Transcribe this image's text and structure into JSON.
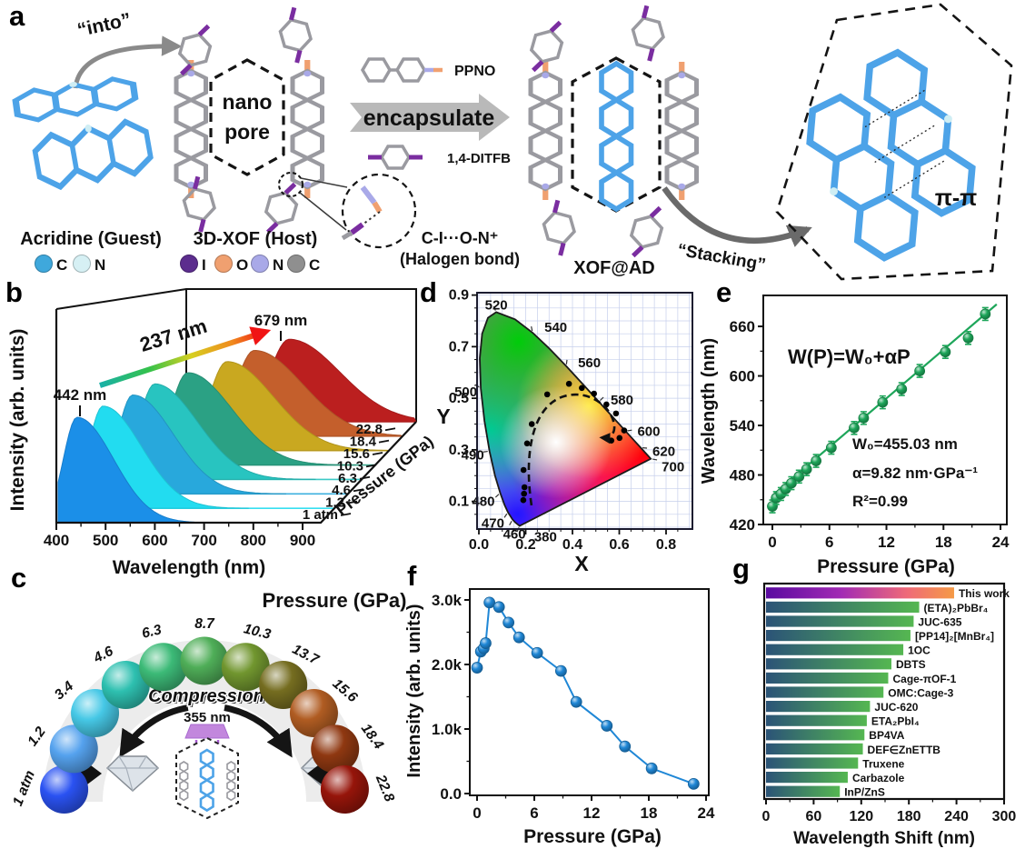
{
  "panel_letters": {
    "a": "a",
    "b": "b",
    "c": "c",
    "d": "d",
    "e": "e",
    "f": "f",
    "g": "g"
  },
  "panel_a": {
    "into": "“into”",
    "nano1": "nano",
    "nano2": "pore",
    "guest_title": "Acridine  (Guest)",
    "guest_atoms": [
      {
        "s": "C",
        "c": "#3fa8dc"
      },
      {
        "s": "N",
        "c": "#d6f0f4"
      }
    ],
    "host_title": "3D-XOF  (Host)",
    "host_atoms": [
      {
        "s": "I",
        "c": "#5c2d8e"
      },
      {
        "s": "O",
        "c": "#f0a070"
      },
      {
        "s": "N",
        "c": "#a9a9e8"
      },
      {
        "s": "C",
        "c": "#8f8f8f"
      }
    ],
    "ppno": "PPNO",
    "encapsulate": "encapsulate",
    "ditfb": "1,4-DITFB",
    "halogen1": "C-I···O-N⁺",
    "halogen2": "(Halogen bond)",
    "xofad": "XOF@AD",
    "stacking": "“Stacking”",
    "pipi": "π-π"
  },
  "panel_c": {
    "title": "Pressure (GPa)",
    "compression": "Compression",
    "laser": "355 nm",
    "spheres": [
      {
        "label": "1 atm",
        "color": "#2a52f2"
      },
      {
        "label": "1.2",
        "color": "#55a2ee"
      },
      {
        "label": "3.4",
        "color": "#46c8e6"
      },
      {
        "label": "4.6",
        "color": "#2ec0b0"
      },
      {
        "label": "6.3",
        "color": "#3cba77"
      },
      {
        "label": "8.7",
        "color": "#4fae58"
      },
      {
        "label": "10.3",
        "color": "#71962f"
      },
      {
        "label": "13.7",
        "color": "#756d20"
      },
      {
        "label": "15.6",
        "color": "#b05c22"
      },
      {
        "label": "18.4",
        "color": "#8f3811"
      },
      {
        "label": "22.8",
        "color": "#96150a"
      }
    ]
  },
  "colors": {
    "guest_blue": "#4da3e8",
    "host_gray": "#9a9aa0",
    "iodine_purple": "#7a2da0",
    "oxygen_orange": "#f0a070",
    "nitrogen_violet": "#a9a9e8",
    "bar_gradient": [
      "#2b5377",
      "#55b751"
    ],
    "highlight_gradient": [
      "#5a0aa0",
      "#a22bb4",
      "#ef6a78",
      "#f59a46"
    ],
    "highlight_text": "#7d0ec9"
  },
  "chart_data": [
    {
      "id": "b",
      "type": "area",
      "name": "pressure-dependent-emission-spectra",
      "xlabel": "Wavelength (nm)",
      "ylabel": "Intensity (arb. units)",
      "zlabel": "Pressure (GPa)",
      "x_ticks": [
        400,
        500,
        600,
        700,
        800,
        900
      ],
      "annotations": {
        "first_peak": "442 nm",
        "last_peak": "679 nm",
        "total_shift": "237 nm"
      },
      "series": [
        {
          "pressure": "1 atm",
          "peak_nm": 442,
          "color": "#1b8fe8"
        },
        {
          "pressure": "1.2",
          "peak_nm": 467,
          "color": "#22dcf0"
        },
        {
          "pressure": "4.6",
          "peak_nm": 500,
          "color": "#28a8dc"
        },
        {
          "pressure": "6.3",
          "peak_nm": 517,
          "color": "#28c4c0"
        },
        {
          "pressure": "10.3",
          "peak_nm": 556,
          "color": "#2ba184"
        },
        {
          "pressure": "15.6",
          "peak_nm": 608,
          "color": "#c9a820"
        },
        {
          "pressure": "18.4",
          "peak_nm": 636,
          "color": "#c45f2c"
        },
        {
          "pressure": "22.8",
          "peak_nm": 679,
          "color": "#bb1f1f"
        }
      ]
    },
    {
      "id": "d",
      "type": "scatter",
      "name": "cie-1931-chromaticity-trajectory",
      "xlabel": "X",
      "ylabel": "Y",
      "x_ticks": [
        "0.0",
        "0.2",
        "0.4",
        "0.6",
        "0.8"
      ],
      "y_ticks": [
        "0.1",
        "0.3",
        "0.5",
        "0.7",
        "0.9"
      ],
      "locus_labels": [
        "520",
        "540",
        "560",
        "580",
        "600",
        "620",
        "700",
        "500",
        "490",
        "480",
        "470",
        "460",
        "380"
      ],
      "points": [
        [
          0.19,
          0.105
        ],
        [
          0.193,
          0.13
        ],
        [
          0.195,
          0.155
        ],
        [
          0.191,
          0.222
        ],
        [
          0.206,
          0.325
        ],
        [
          0.226,
          0.4
        ],
        [
          0.292,
          0.515
        ],
        [
          0.385,
          0.556
        ],
        [
          0.44,
          0.54
        ],
        [
          0.492,
          0.518
        ],
        [
          0.545,
          0.476
        ],
        [
          0.586,
          0.441
        ],
        [
          0.621,
          0.375
        ],
        [
          0.601,
          0.346
        ],
        [
          0.566,
          0.336
        ]
      ]
    },
    {
      "id": "e",
      "type": "scatter",
      "name": "wavelength-vs-pressure-fit",
      "xlabel": "Pressure (GPa)",
      "ylabel": "Wavelength (nm)",
      "x_ticks": [
        0,
        6,
        12,
        18,
        24
      ],
      "y_ticks": [
        420,
        480,
        540,
        600,
        660
      ],
      "equation": "W(P)=W₀+αP",
      "fit": {
        "w0": 455.03,
        "alpha": 9.82,
        "r2": 0.99,
        "w0_label": "W₀=455.03 nm",
        "alpha_label": "α=9.82 nm·GPa⁻¹",
        "r2_label": "R²=0.99"
      },
      "color": "#1ea65a",
      "x": [
        0,
        0.4,
        0.9,
        1.4,
        2.0,
        2.8,
        3.6,
        4.6,
        6.2,
        8.6,
        9.6,
        11.6,
        13.6,
        15.5,
        18.2,
        20.6,
        22.4
      ],
      "y": [
        442,
        452,
        457,
        463,
        470,
        478,
        487,
        497,
        513,
        537,
        549,
        568,
        584,
        606,
        629,
        646,
        675
      ]
    },
    {
      "id": "f",
      "type": "line",
      "name": "intensity-vs-pressure",
      "xlabel": "Pressure (GPa)",
      "ylabel": "Intensity (arb. units)",
      "x_ticks": [
        0,
        6,
        12,
        18,
        24
      ],
      "y_ticks": [
        0,
        1000,
        2000,
        3000
      ],
      "y_tick_labels": [
        "0.0",
        "1.0k",
        "2.0k",
        "3.0k"
      ],
      "color": "#1f87d6",
      "x": [
        0,
        0.4,
        0.7,
        0.9,
        1.3,
        2.3,
        3.3,
        4.4,
        6.3,
        8.8,
        10.4,
        13.6,
        15.5,
        18.3,
        22.7
      ],
      "y": [
        1950,
        2200,
        2250,
        2330,
        2960,
        2890,
        2650,
        2420,
        2180,
        1900,
        1420,
        1050,
        730,
        390,
        150
      ]
    },
    {
      "id": "g",
      "type": "bar",
      "name": "wavelength-shift-comparison",
      "orientation": "horizontal",
      "xlabel": "Wavelength Shift (nm)",
      "x_ticks": [
        0,
        60,
        120,
        180,
        240,
        300
      ],
      "xlim": [
        0,
        300
      ],
      "bars": [
        {
          "label": "This work",
          "value": 237,
          "highlight": true
        },
        {
          "label": "(ETA)₂PbBr₄",
          "value": 193
        },
        {
          "label": "JUC-635",
          "value": 186
        },
        {
          "label": "[PP14]₂[MnBr₄]",
          "value": 182
        },
        {
          "label": "1OC",
          "value": 173
        },
        {
          "label": "DBTS",
          "value": 158
        },
        {
          "label": "Cage-πOF-1",
          "value": 154
        },
        {
          "label": "OMC:Cage-3",
          "value": 148
        },
        {
          "label": "JUC-620",
          "value": 131
        },
        {
          "label": "ETA₂PbI₄",
          "value": 127
        },
        {
          "label": "BP4VA",
          "value": 124
        },
        {
          "label": "DEF∈ZnETTB",
          "value": 122
        },
        {
          "label": "Truxene",
          "value": 116
        },
        {
          "label": "Carbazole",
          "value": 103
        },
        {
          "label": "InP/ZnS",
          "value": 93
        }
      ]
    }
  ]
}
